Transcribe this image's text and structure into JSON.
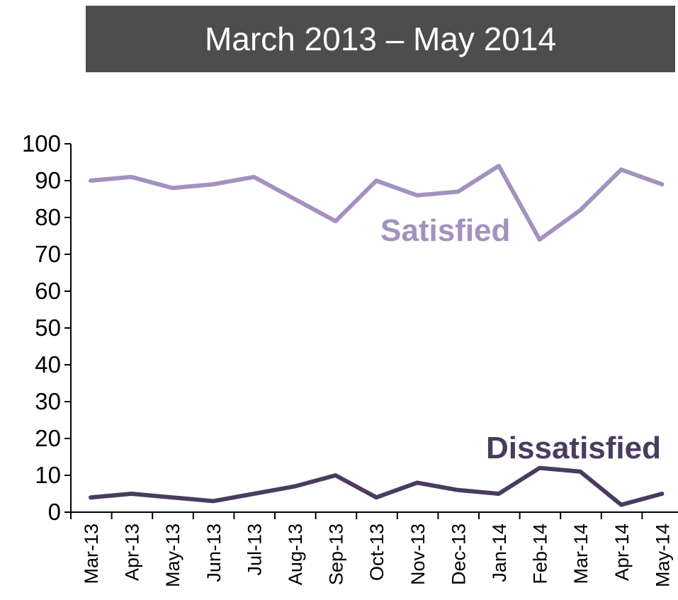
{
  "title": "March 2013 – May 2014",
  "colors": {
    "satisfied": "#a391bf",
    "dissatisfied": "#4a3b5f",
    "banner": "#4d4d4d",
    "axis": "#000000"
  },
  "chart_data": {
    "type": "line",
    "title": "March 2013 – May 2014",
    "xlabel": "",
    "ylabel": "",
    "categories": [
      "Mar-13",
      "Apr-13",
      "May-13",
      "Jun-13",
      "Jul-13",
      "Aug-13",
      "Sep-13",
      "Oct-13",
      "Nov-13",
      "Dec-13",
      "Jan-14",
      "Feb-14",
      "Mar-14",
      "Apr-14",
      "May-14"
    ],
    "ylim": [
      0,
      100
    ],
    "yticks": [
      0,
      10,
      20,
      30,
      40,
      50,
      60,
      70,
      80,
      90,
      100
    ],
    "grid": false,
    "legend": "inline labels",
    "series": [
      {
        "name": "Satisfied",
        "values": [
          90,
          91,
          88,
          89,
          91,
          85,
          79,
          90,
          86,
          87,
          94,
          74,
          82,
          93,
          89
        ]
      },
      {
        "name": "Dissatisfied",
        "values": [
          4,
          5,
          4,
          3,
          5,
          7,
          10,
          4,
          8,
          6,
          5,
          12,
          11,
          2,
          5
        ]
      }
    ]
  }
}
